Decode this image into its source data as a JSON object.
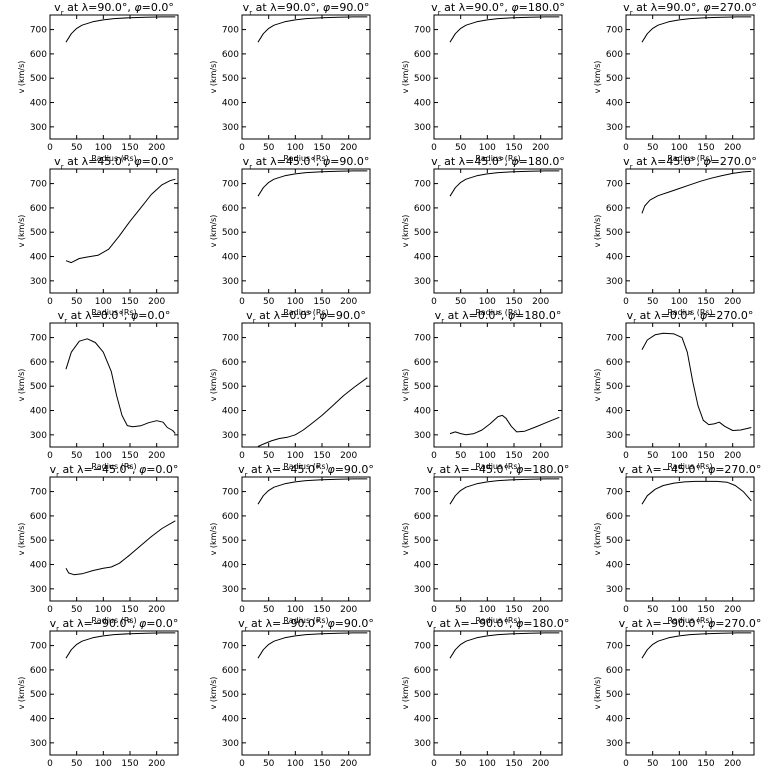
{
  "chart_data": [
    {
      "type": "line",
      "title_pre": "v",
      "title_sub": "r",
      "title_mid": " at λ=90.0°, ",
      "title_phi": "φ",
      "title_post": "=0.0°",
      "xlabel": "Radius (Rs)",
      "ylabel": "v (km/s)",
      "xlim": [
        0,
        240
      ],
      "ylim": [
        250,
        760
      ],
      "xticks": [
        0,
        50,
        100,
        150,
        200
      ],
      "yticks": [
        300,
        400,
        500,
        600,
        700
      ],
      "x": [
        30,
        40,
        50,
        60,
        80,
        100,
        120,
        150,
        180,
        210,
        235
      ],
      "y": [
        648,
        683,
        705,
        718,
        732,
        740,
        745,
        749,
        751,
        752,
        752
      ]
    },
    {
      "type": "line",
      "title_pre": "v",
      "title_sub": "r",
      "title_mid": " at λ=90.0°, ",
      "title_phi": "φ",
      "title_post": "=90.0°",
      "xlabel": "Radius (Rs)",
      "ylabel": "v (km/s)",
      "xlim": [
        0,
        240
      ],
      "ylim": [
        250,
        760
      ],
      "xticks": [
        0,
        50,
        100,
        150,
        200
      ],
      "yticks": [
        300,
        400,
        500,
        600,
        700
      ],
      "x": [
        30,
        40,
        50,
        60,
        80,
        100,
        120,
        150,
        180,
        210,
        235
      ],
      "y": [
        648,
        683,
        705,
        718,
        732,
        740,
        745,
        749,
        751,
        752,
        752
      ]
    },
    {
      "type": "line",
      "title_pre": "v",
      "title_sub": "r",
      "title_mid": " at λ=90.0°, ",
      "title_phi": "φ",
      "title_post": "=180.0°",
      "xlabel": "Radius (Rs)",
      "ylabel": "v (km/s)",
      "xlim": [
        0,
        240
      ],
      "ylim": [
        250,
        760
      ],
      "xticks": [
        0,
        50,
        100,
        150,
        200
      ],
      "yticks": [
        300,
        400,
        500,
        600,
        700
      ],
      "x": [
        30,
        40,
        50,
        60,
        80,
        100,
        120,
        150,
        180,
        210,
        235
      ],
      "y": [
        648,
        683,
        705,
        718,
        732,
        740,
        745,
        749,
        751,
        752,
        752
      ]
    },
    {
      "type": "line",
      "title_pre": "v",
      "title_sub": "r",
      "title_mid": " at λ=90.0°, ",
      "title_phi": "φ",
      "title_post": "=270.0°",
      "xlabel": "Radius (Rs)",
      "ylabel": "v (km/s)",
      "xlim": [
        0,
        240
      ],
      "ylim": [
        250,
        760
      ],
      "xticks": [
        0,
        50,
        100,
        150,
        200
      ],
      "yticks": [
        300,
        400,
        500,
        600,
        700
      ],
      "x": [
        30,
        40,
        50,
        60,
        80,
        100,
        120,
        150,
        180,
        210,
        235
      ],
      "y": [
        648,
        683,
        705,
        718,
        732,
        740,
        745,
        749,
        751,
        752,
        752
      ]
    },
    {
      "type": "line",
      "title_pre": "v",
      "title_sub": "r",
      "title_mid": " at λ=45.0°, ",
      "title_phi": "φ",
      "title_post": "=0.0°",
      "xlabel": "Radius (Rs)",
      "ylabel": "v (km/s)",
      "xlim": [
        0,
        240
      ],
      "ylim": [
        250,
        760
      ],
      "xticks": [
        0,
        50,
        100,
        150,
        200
      ],
      "yticks": [
        300,
        400,
        500,
        600,
        700
      ],
      "x": [
        30,
        40,
        55,
        70,
        90,
        110,
        130,
        150,
        170,
        190,
        210,
        225,
        235
      ],
      "y": [
        383,
        375,
        392,
        398,
        405,
        430,
        485,
        545,
        600,
        655,
        695,
        712,
        718
      ]
    },
    {
      "type": "line",
      "title_pre": "v",
      "title_sub": "r",
      "title_mid": " at λ=45.0°, ",
      "title_phi": "φ",
      "title_post": "=90.0°",
      "xlabel": "Radius (Rs)",
      "ylabel": "v (km/s)",
      "xlim": [
        0,
        240
      ],
      "ylim": [
        250,
        760
      ],
      "xticks": [
        0,
        50,
        100,
        150,
        200
      ],
      "yticks": [
        300,
        400,
        500,
        600,
        700
      ],
      "x": [
        30,
        40,
        50,
        60,
        80,
        100,
        120,
        150,
        180,
        210,
        235
      ],
      "y": [
        648,
        683,
        705,
        718,
        732,
        740,
        745,
        749,
        751,
        752,
        752
      ]
    },
    {
      "type": "line",
      "title_pre": "v",
      "title_sub": "r",
      "title_mid": " at λ=45.0°, ",
      "title_phi": "φ",
      "title_post": "=180.0°",
      "xlabel": "Radius (Rs)",
      "ylabel": "v (km/s)",
      "xlim": [
        0,
        240
      ],
      "ylim": [
        250,
        760
      ],
      "xticks": [
        0,
        50,
        100,
        150,
        200
      ],
      "yticks": [
        300,
        400,
        500,
        600,
        700
      ],
      "x": [
        30,
        40,
        50,
        60,
        80,
        100,
        120,
        150,
        180,
        210,
        235
      ],
      "y": [
        648,
        683,
        705,
        718,
        732,
        740,
        745,
        749,
        751,
        752,
        752
      ]
    },
    {
      "type": "line",
      "title_pre": "v",
      "title_sub": "r",
      "title_mid": " at λ=45.0°, ",
      "title_phi": "φ",
      "title_post": "=270.0°",
      "xlabel": "Radius (Rs)",
      "ylabel": "v (km/s)",
      "xlim": [
        0,
        240
      ],
      "ylim": [
        250,
        760
      ],
      "xticks": [
        0,
        50,
        100,
        150,
        200
      ],
      "yticks": [
        300,
        400,
        500,
        600,
        700
      ],
      "x": [
        30,
        35,
        45,
        60,
        80,
        100,
        120,
        140,
        160,
        180,
        200,
        220,
        235
      ],
      "y": [
        578,
        608,
        632,
        650,
        665,
        680,
        695,
        710,
        722,
        733,
        742,
        748,
        750
      ]
    },
    {
      "type": "line",
      "title_pre": "v",
      "title_sub": "r",
      "title_mid": " at λ=0.0°, ",
      "title_phi": "φ",
      "title_post": "=0.0°",
      "xlabel": "Radius (Rs)",
      "ylabel": "v (km/s)",
      "xlim": [
        0,
        240
      ],
      "ylim": [
        250,
        760
      ],
      "xticks": [
        0,
        50,
        100,
        150,
        200
      ],
      "yticks": [
        300,
        400,
        500,
        600,
        700
      ],
      "x": [
        30,
        40,
        55,
        70,
        85,
        100,
        115,
        125,
        135,
        145,
        155,
        170,
        185,
        200,
        212,
        220,
        230,
        235
      ],
      "y": [
        570,
        640,
        685,
        695,
        680,
        640,
        560,
        460,
        380,
        338,
        333,
        337,
        350,
        358,
        352,
        330,
        318,
        305
      ]
    },
    {
      "type": "line",
      "title_pre": "v",
      "title_sub": "r",
      "title_mid": " at λ=0.0°, ",
      "title_phi": "φ",
      "title_post": "=90.0°",
      "xlabel": "Radius (Rs)",
      "ylabel": "v (km/s)",
      "xlim": [
        0,
        240
      ],
      "ylim": [
        250,
        760
      ],
      "xticks": [
        0,
        50,
        100,
        150,
        200
      ],
      "yticks": [
        300,
        400,
        500,
        600,
        700
      ],
      "x": [
        30,
        40,
        55,
        70,
        85,
        100,
        115,
        130,
        150,
        170,
        190,
        210,
        235
      ],
      "y": [
        252,
        262,
        275,
        285,
        290,
        300,
        320,
        345,
        380,
        420,
        460,
        495,
        535
      ]
    },
    {
      "type": "line",
      "title_pre": "v",
      "title_sub": "r",
      "title_mid": " at λ=0.0°, ",
      "title_phi": "φ",
      "title_post": "=180.0°",
      "xlabel": "Radius (Rs)",
      "ylabel": "v (km/s)",
      "xlim": [
        0,
        240
      ],
      "ylim": [
        250,
        760
      ],
      "xticks": [
        0,
        50,
        100,
        150,
        200
      ],
      "yticks": [
        300,
        400,
        500,
        600,
        700
      ],
      "x": [
        30,
        40,
        50,
        60,
        75,
        90,
        105,
        120,
        128,
        135,
        145,
        155,
        170,
        190,
        210,
        235
      ],
      "y": [
        305,
        312,
        305,
        300,
        305,
        320,
        345,
        375,
        380,
        368,
        335,
        312,
        315,
        332,
        350,
        372
      ]
    },
    {
      "type": "line",
      "title_pre": "v",
      "title_sub": "r",
      "title_mid": " at λ=0.0°, ",
      "title_phi": "φ",
      "title_post": "=270.0°",
      "xlabel": "Radius (Rs)",
      "ylabel": "v (km/s)",
      "xlim": [
        0,
        240
      ],
      "ylim": [
        250,
        760
      ],
      "xticks": [
        0,
        50,
        100,
        150,
        200
      ],
      "yticks": [
        300,
        400,
        500,
        600,
        700
      ],
      "x": [
        30,
        40,
        55,
        70,
        90,
        105,
        115,
        125,
        135,
        145,
        155,
        165,
        175,
        185,
        200,
        215,
        235
      ],
      "y": [
        650,
        690,
        712,
        718,
        715,
        700,
        640,
        520,
        420,
        360,
        342,
        345,
        352,
        335,
        318,
        320,
        330
      ]
    },
    {
      "type": "line",
      "title_pre": "v",
      "title_sub": "r",
      "title_mid": " at λ=−45.0°, ",
      "title_phi": "φ",
      "title_post": "=0.0°",
      "xlabel": "Radius (Rs)",
      "ylabel": "v (km/s)",
      "xlim": [
        0,
        240
      ],
      "ylim": [
        250,
        760
      ],
      "xticks": [
        0,
        50,
        100,
        150,
        200
      ],
      "yticks": [
        300,
        400,
        500,
        600,
        700
      ],
      "x": [
        30,
        35,
        45,
        60,
        80,
        100,
        115,
        130,
        150,
        170,
        190,
        210,
        235
      ],
      "y": [
        385,
        365,
        358,
        362,
        375,
        385,
        390,
        405,
        440,
        478,
        515,
        548,
        580
      ]
    },
    {
      "type": "line",
      "title_pre": "v",
      "title_sub": "r",
      "title_mid": " at λ=−45.0°, ",
      "title_phi": "φ",
      "title_post": "=90.0°",
      "xlabel": "Radius (Rs)",
      "ylabel": "v (km/s)",
      "xlim": [
        0,
        240
      ],
      "ylim": [
        250,
        760
      ],
      "xticks": [
        0,
        50,
        100,
        150,
        200
      ],
      "yticks": [
        300,
        400,
        500,
        600,
        700
      ],
      "x": [
        30,
        40,
        50,
        60,
        80,
        100,
        120,
        150,
        180,
        210,
        235
      ],
      "y": [
        648,
        683,
        705,
        718,
        732,
        740,
        745,
        749,
        751,
        752,
        752
      ]
    },
    {
      "type": "line",
      "title_pre": "v",
      "title_sub": "r",
      "title_mid": " at λ=−45.0°, ",
      "title_phi": "φ",
      "title_post": "=180.0°",
      "xlabel": "Radius (Rs)",
      "ylabel": "v (km/s)",
      "xlim": [
        0,
        240
      ],
      "ylim": [
        250,
        760
      ],
      "xticks": [
        0,
        50,
        100,
        150,
        200
      ],
      "yticks": [
        300,
        400,
        500,
        600,
        700
      ],
      "x": [
        30,
        40,
        50,
        60,
        80,
        100,
        120,
        150,
        180,
        210,
        235
      ],
      "y": [
        648,
        683,
        705,
        718,
        732,
        740,
        745,
        749,
        751,
        752,
        752
      ]
    },
    {
      "type": "line",
      "title_pre": "v",
      "title_sub": "r",
      "title_mid": " at λ=−45.0°, ",
      "title_phi": "φ",
      "title_post": "=270.0°",
      "xlabel": "Radius (Rs)",
      "ylabel": "v (km/s)",
      "xlim": [
        0,
        240
      ],
      "ylim": [
        250,
        760
      ],
      "xticks": [
        0,
        50,
        100,
        150,
        200
      ],
      "yticks": [
        300,
        400,
        500,
        600,
        700
      ],
      "x": [
        30,
        40,
        55,
        70,
        90,
        110,
        130,
        150,
        170,
        190,
        205,
        220,
        235
      ],
      "y": [
        648,
        683,
        710,
        725,
        735,
        740,
        742,
        742,
        742,
        738,
        725,
        700,
        662
      ]
    },
    {
      "type": "line",
      "title_pre": "v",
      "title_sub": "r",
      "title_mid": " at λ=−90.0°, ",
      "title_phi": "φ",
      "title_post": "=0.0°",
      "xlabel": "Radius (Rs)",
      "ylabel": "v (km/s)",
      "xlim": [
        0,
        240
      ],
      "ylim": [
        250,
        760
      ],
      "xticks": [
        0,
        50,
        100,
        150,
        200
      ],
      "yticks": [
        300,
        400,
        500,
        600,
        700
      ],
      "x": [
        30,
        40,
        50,
        60,
        80,
        100,
        120,
        150,
        180,
        210,
        235
      ],
      "y": [
        648,
        683,
        705,
        718,
        732,
        740,
        745,
        749,
        751,
        752,
        752
      ]
    },
    {
      "type": "line",
      "title_pre": "v",
      "title_sub": "r",
      "title_mid": " at λ=−90.0°, ",
      "title_phi": "φ",
      "title_post": "=90.0°",
      "xlabel": "Radius (Rs)",
      "ylabel": "v (km/s)",
      "xlim": [
        0,
        240
      ],
      "ylim": [
        250,
        760
      ],
      "xticks": [
        0,
        50,
        100,
        150,
        200
      ],
      "yticks": [
        300,
        400,
        500,
        600,
        700
      ],
      "x": [
        30,
        40,
        50,
        60,
        80,
        100,
        120,
        150,
        180,
        210,
        235
      ],
      "y": [
        648,
        683,
        705,
        718,
        732,
        740,
        745,
        749,
        751,
        752,
        752
      ]
    },
    {
      "type": "line",
      "title_pre": "v",
      "title_sub": "r",
      "title_mid": " at λ=−90.0°, ",
      "title_phi": "φ",
      "title_post": "=180.0°",
      "xlabel": "Radius (Rs)",
      "ylabel": "v (km/s)",
      "xlim": [
        0,
        240
      ],
      "ylim": [
        250,
        760
      ],
      "xticks": [
        0,
        50,
        100,
        150,
        200
      ],
      "yticks": [
        300,
        400,
        500,
        600,
        700
      ],
      "x": [
        30,
        40,
        50,
        60,
        80,
        100,
        120,
        150,
        180,
        210,
        235
      ],
      "y": [
        648,
        683,
        705,
        718,
        732,
        740,
        745,
        749,
        751,
        752,
        752
      ]
    },
    {
      "type": "line",
      "title_pre": "v",
      "title_sub": "r",
      "title_mid": " at λ=−90.0°, ",
      "title_phi": "φ",
      "title_post": "=270.0°",
      "xlabel": "Radius (Rs)",
      "ylabel": "v (km/s)",
      "xlim": [
        0,
        240
      ],
      "ylim": [
        250,
        760
      ],
      "xticks": [
        0,
        50,
        100,
        150,
        200
      ],
      "yticks": [
        300,
        400,
        500,
        600,
        700
      ],
      "x": [
        30,
        40,
        50,
        60,
        80,
        100,
        120,
        150,
        180,
        210,
        235
      ],
      "y": [
        648,
        683,
        705,
        718,
        732,
        740,
        745,
        749,
        751,
        752,
        752
      ]
    }
  ]
}
